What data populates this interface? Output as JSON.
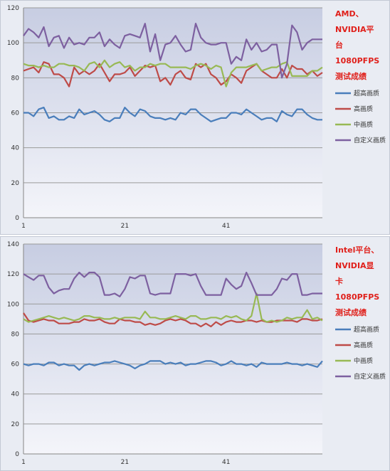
{
  "chart_data": [
    {
      "type": "line",
      "title_lines": [
        "AMD、",
        "NVIDIA平",
        "台",
        "1080PFPS",
        "测试成绩"
      ],
      "ylim": [
        0,
        120
      ],
      "yticks": [
        0,
        20,
        40,
        60,
        80,
        100,
        120
      ],
      "x": [
        1,
        2,
        3,
        4,
        5,
        6,
        7,
        8,
        9,
        10,
        11,
        12,
        13,
        14,
        15,
        16,
        17,
        18,
        19,
        20,
        21,
        22,
        23,
        24,
        25,
        26,
        27,
        28,
        29,
        30,
        31,
        32,
        33,
        34,
        35,
        36,
        37,
        38,
        39,
        40,
        41,
        42,
        43,
        44,
        45,
        46,
        47,
        48,
        49,
        50,
        51,
        52,
        53,
        54,
        55,
        56,
        57,
        58,
        59,
        60
      ],
      "xtick_labels": [
        "1",
        "21",
        "41"
      ],
      "grid": true,
      "legend_position": "right",
      "series": [
        {
          "name": "超高画质",
          "color": "#4a7ebb",
          "values": [
            60,
            60,
            58,
            62,
            63,
            57,
            58,
            56,
            56,
            58,
            57,
            62,
            59,
            60,
            61,
            59,
            56,
            55,
            57,
            57,
            63,
            60,
            58,
            62,
            61,
            58,
            57,
            57,
            56,
            57,
            56,
            60,
            59,
            62,
            62,
            59,
            57,
            55,
            56,
            57,
            57,
            60,
            60,
            59,
            62,
            60,
            58,
            56,
            57,
            57,
            55,
            61,
            59,
            58,
            62,
            62,
            59,
            57,
            56,
            56
          ]
        },
        {
          "name": "高画质",
          "color": "#be4b48",
          "values": [
            84,
            85,
            86,
            83,
            89,
            88,
            82,
            82,
            80,
            75,
            86,
            82,
            84,
            82,
            84,
            88,
            83,
            78,
            82,
            82,
            83,
            86,
            81,
            84,
            87,
            86,
            87,
            78,
            80,
            76,
            82,
            84,
            80,
            79,
            88,
            86,
            88,
            82,
            80,
            76,
            78,
            82,
            80,
            77,
            84,
            86,
            88,
            84,
            82,
            80,
            80,
            85,
            80,
            87,
            85,
            85,
            82,
            84,
            81,
            83
          ]
        },
        {
          "name": "中画质",
          "color": "#98b954",
          "values": [
            88,
            87,
            87,
            86,
            87,
            86,
            86,
            88,
            88,
            87,
            87,
            86,
            84,
            88,
            89,
            86,
            90,
            86,
            88,
            89,
            86,
            87,
            84,
            86,
            86,
            88,
            87,
            88,
            88,
            86,
            86,
            86,
            86,
            85,
            87,
            88,
            87,
            85,
            87,
            86,
            75,
            83,
            86,
            86,
            86,
            87,
            88,
            84,
            85,
            86,
            86,
            88,
            89,
            81,
            81,
            81,
            81,
            84,
            84,
            86
          ]
        },
        {
          "name": "自定义画质",
          "color": "#7d60a0",
          "values": [
            104,
            108,
            106,
            103,
            109,
            98,
            103,
            104,
            97,
            103,
            99,
            100,
            99,
            103,
            103,
            106,
            98,
            102,
            99,
            97,
            104,
            105,
            104,
            103,
            111,
            95,
            105,
            90,
            99,
            100,
            104,
            99,
            95,
            96,
            111,
            103,
            100,
            99,
            99,
            100,
            100,
            88,
            92,
            90,
            102,
            96,
            100,
            95,
            96,
            99,
            99,
            80,
            88,
            110,
            106,
            96,
            100,
            102,
            102,
            102
          ]
        }
      ]
    },
    {
      "type": "line",
      "title_lines": [
        "Intel平台、",
        "NVIDIA显",
        "卡",
        "1080PFPS",
        "测试成绩"
      ],
      "ylim": [
        0,
        140
      ],
      "yticks": [
        0,
        20,
        40,
        60,
        80,
        100,
        120,
        140
      ],
      "x": [
        1,
        2,
        3,
        4,
        5,
        6,
        7,
        8,
        9,
        10,
        11,
        12,
        13,
        14,
        15,
        16,
        17,
        18,
        19,
        20,
        21,
        22,
        23,
        24,
        25,
        26,
        27,
        28,
        29,
        30,
        31,
        32,
        33,
        34,
        35,
        36,
        37,
        38,
        39,
        40,
        41,
        42,
        43,
        44,
        45,
        46,
        47,
        48,
        49,
        50,
        51,
        52,
        53,
        54,
        55,
        56,
        57,
        58,
        59,
        60
      ],
      "xtick_labels": [
        "1",
        "21",
        "41"
      ],
      "grid": true,
      "legend_position": "right",
      "series": [
        {
          "name": "超高画质",
          "color": "#4a7ebb",
          "values": [
            60,
            59,
            60,
            60,
            59,
            61,
            61,
            59,
            60,
            59,
            59,
            56,
            59,
            60,
            59,
            60,
            61,
            61,
            62,
            61,
            60,
            59,
            57,
            59,
            60,
            62,
            62,
            62,
            60,
            61,
            60,
            61,
            59,
            60,
            60,
            61,
            62,
            62,
            61,
            59,
            60,
            62,
            60,
            60,
            59,
            60,
            58,
            61,
            60,
            60,
            60,
            60,
            61,
            60,
            60,
            59,
            60,
            59,
            58,
            62
          ]
        },
        {
          "name": "高画质",
          "color": "#be4b48",
          "values": [
            94,
            89,
            88,
            89,
            90,
            89,
            89,
            87,
            87,
            87,
            88,
            88,
            90,
            89,
            89,
            90,
            88,
            87,
            87,
            90,
            89,
            89,
            88,
            88,
            86,
            87,
            86,
            87,
            89,
            90,
            89,
            90,
            89,
            87,
            87,
            85,
            87,
            85,
            88,
            86,
            88,
            89,
            88,
            88,
            89,
            89,
            88,
            89,
            88,
            88,
            89,
            89,
            89,
            89,
            88,
            90,
            90,
            89,
            89,
            90
          ]
        },
        {
          "name": "中画质",
          "color": "#98b954",
          "values": [
            90,
            88,
            89,
            90,
            91,
            92,
            91,
            90,
            91,
            90,
            89,
            90,
            92,
            92,
            91,
            91,
            90,
            90,
            91,
            90,
            91,
            91,
            91,
            90,
            95,
            91,
            91,
            90,
            90,
            91,
            92,
            91,
            90,
            92,
            92,
            90,
            90,
            91,
            91,
            90,
            92,
            91,
            92,
            90,
            89,
            92,
            107,
            90,
            88,
            89,
            88,
            89,
            91,
            90,
            91,
            91,
            96,
            90,
            91,
            89
          ]
        },
        {
          "name": "自定义画质",
          "color": "#7d60a0",
          "values": [
            120,
            118,
            116,
            119,
            119,
            111,
            107,
            109,
            110,
            110,
            117,
            121,
            118,
            121,
            121,
            118,
            106,
            106,
            107,
            105,
            110,
            118,
            117,
            119,
            119,
            107,
            106,
            107,
            107,
            107,
            120,
            120,
            120,
            119,
            120,
            112,
            106,
            106,
            106,
            106,
            117,
            113,
            110,
            112,
            121,
            114,
            106,
            106,
            106,
            106,
            110,
            117,
            116,
            120,
            120,
            106,
            106,
            107,
            107,
            107
          ]
        }
      ]
    }
  ]
}
